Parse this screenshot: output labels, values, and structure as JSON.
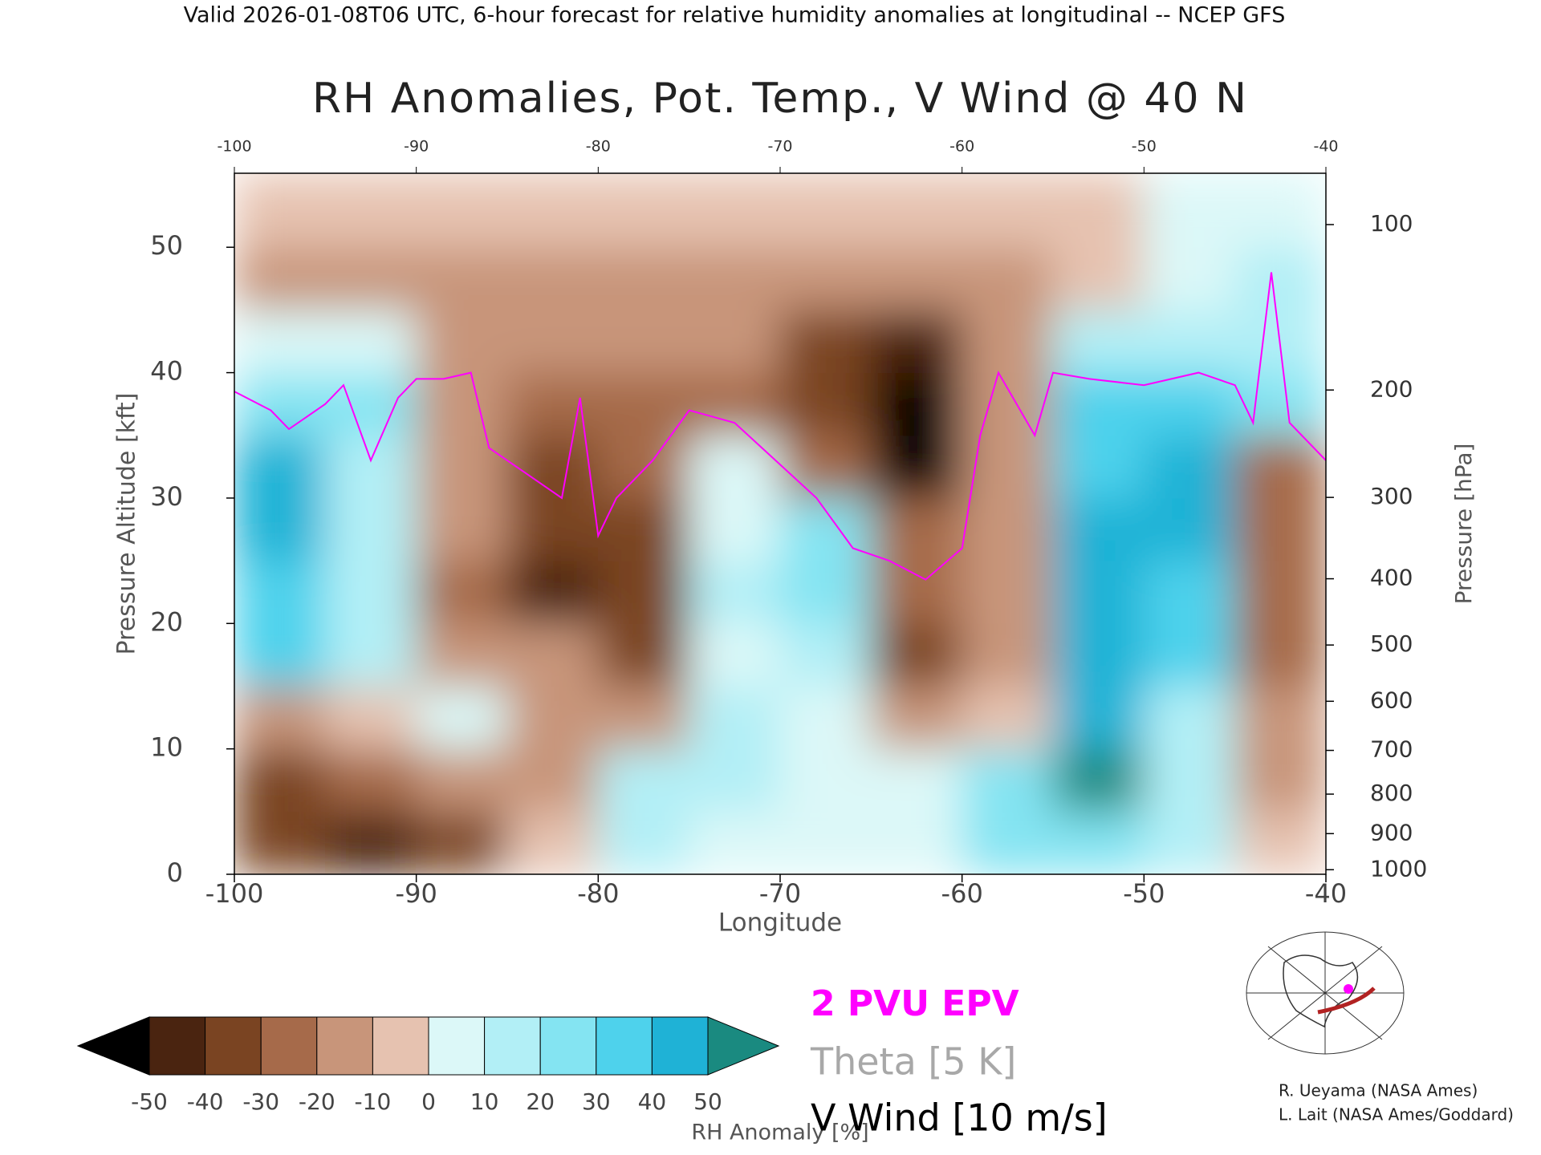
{
  "chart_data": {
    "type": "heatmap",
    "header": "Valid 2026-01-08T06 UTC, 6-hour forecast for relative humidity anomalies at longitudinal -- NCEP GFS",
    "title": "RH Anomalies, Pot. Temp., V Wind @ 40 N",
    "xlabel": "Longitude",
    "ylabel": "Pressure Altitude [kft]",
    "y2label": "Pressure [hPa]",
    "xlim": [
      -100,
      -40
    ],
    "xticks": [
      -100,
      -90,
      -80,
      -70,
      -60,
      -50,
      -40
    ],
    "ylim": [
      0,
      55.9
    ],
    "yticks": [
      0,
      10,
      20,
      30,
      40,
      50
    ],
    "y2scale": "pressure-altitude",
    "y2ticks": [
      100,
      200,
      300,
      400,
      500,
      600,
      700,
      800,
      900,
      1000
    ],
    "x": [
      -97.5,
      -92.5,
      -87.5,
      -82.5,
      -77.5,
      -72.5,
      -67.5,
      -62.5,
      -57.5,
      -52.5,
      -47.5,
      -42.5
    ],
    "y": [
      2.5,
      7.5,
      12.5,
      17.5,
      22.5,
      27.5,
      32.5,
      37.5,
      42.5,
      47.5,
      52.5
    ],
    "z": [
      [
        -30,
        -40,
        -30,
        -5,
        15,
        10,
        5,
        10,
        25,
        30,
        20,
        0
      ],
      [
        -30,
        -20,
        -15,
        -10,
        15,
        15,
        10,
        5,
        25,
        55,
        20,
        -15
      ],
      [
        -10,
        -5,
        5,
        -10,
        -10,
        15,
        10,
        -10,
        -5,
        50,
        20,
        -10
      ],
      [
        40,
        20,
        -10,
        -10,
        -30,
        10,
        20,
        -30,
        -15,
        45,
        35,
        -25
      ],
      [
        40,
        20,
        -20,
        -40,
        -35,
        15,
        30,
        -20,
        -10,
        45,
        40,
        -20
      ],
      [
        45,
        15,
        -15,
        -35,
        -30,
        10,
        25,
        -20,
        -10,
        45,
        45,
        -25
      ],
      [
        45,
        20,
        -10,
        -35,
        -25,
        10,
        -20,
        -60,
        -10,
        40,
        45,
        -25
      ],
      [
        30,
        25,
        -15,
        -20,
        -25,
        -20,
        -30,
        -60,
        -10,
        40,
        40,
        25
      ],
      [
        10,
        5,
        -10,
        -10,
        -10,
        -15,
        -30,
        -40,
        -10,
        15,
        15,
        20
      ],
      [
        -10,
        -10,
        -10,
        -10,
        -10,
        -10,
        -12,
        -15,
        -10,
        -5,
        10,
        20
      ],
      [
        -3,
        -3,
        -5,
        -5,
        -5,
        -5,
        -8,
        -8,
        -5,
        -3,
        2,
        5
      ]
    ],
    "colorbar": {
      "label": "RH Anomaly [%]",
      "ticks": [
        -50,
        -40,
        -30,
        -20,
        -10,
        0,
        10,
        20,
        30,
        40,
        50
      ],
      "colors": [
        "#4a2410",
        "#7a4422",
        "#a66a4a",
        "#c8957a",
        "#e6c2b0",
        "#dcf8f8",
        "#b2eff6",
        "#84e4f2",
        "#4ed2ec",
        "#1fb2d6"
      ],
      "under": "#000000",
      "over": "#1a8a80"
    },
    "lines": [
      {
        "name": "2 PVU EPV",
        "color": "#ff00ff",
        "x": [
          -100,
          -98,
          -97,
          -95,
          -94,
          -92.5,
          -91,
          -90,
          -88.5,
          -87,
          -86,
          -84,
          -82,
          -81,
          -80,
          -79,
          -77,
          -75,
          -72.5,
          -71,
          -68,
          -66,
          -64,
          -62,
          -60,
          -59,
          -58,
          -56,
          -55,
          -53,
          -50,
          -47,
          -45,
          -44,
          -43,
          -42,
          -40
        ],
        "values": [
          38.5,
          37,
          35.5,
          37.5,
          39,
          33,
          38,
          39.5,
          39.5,
          40,
          34,
          32,
          30,
          38,
          27,
          30,
          33,
          37,
          36,
          34,
          30,
          26,
          25,
          23.5,
          26,
          35,
          40,
          35,
          40,
          39.5,
          39,
          40,
          39,
          36,
          48,
          36,
          33
        ]
      }
    ],
    "contour_legend": [
      {
        "name": "Theta [5 K]",
        "color": "#a8a8a8"
      },
      {
        "name": "V Wind [10 m/s]",
        "color": "#000000"
      }
    ],
    "credits": [
      "R. Ueyama (NASA Ames)",
      "L. Lait (NASA Ames/Goddard)"
    ]
  }
}
